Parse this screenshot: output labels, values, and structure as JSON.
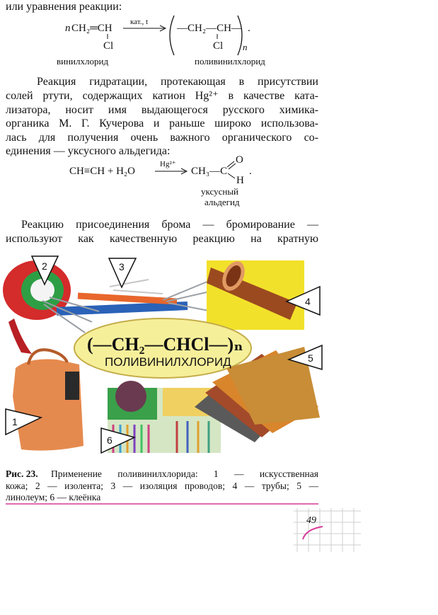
{
  "intro": "или уравнения реакции:",
  "reaction1": {
    "coefficient": "n",
    "reactant": "CH₂═CH",
    "reactant_sub": "Cl",
    "condition": "кат., t",
    "product": "—CH₂—CH—",
    "product_sub": "Cl",
    "index": "n",
    "end": ".",
    "reactant_name": "винилхлорид",
    "product_name": "поливинилхлорид"
  },
  "paragraph1": [
    "Реакция гидратации, протекающая в присутствии",
    "солей ртути, содержащих катион Hg²⁺ в качестве ката-",
    "лизатора, носит имя выдающегося русского химика-",
    "органика М. Г. Кучерова и раньше широко использова-",
    "лась для получения очень важного органического со-",
    "единения — уксусного альдегида:"
  ],
  "reaction2": {
    "left": "CH≡CH + H₂O",
    "condition": "Hg²⁺",
    "right": "CH₃—C",
    "top": "O",
    "bottom": "H",
    "end": ".",
    "product_name": [
      "уксусный",
      "альдегид"
    ]
  },
  "paragraph2": [
    "Реакцию присоединения брома — бромирование —",
    "используют как качественную реакцию на кратную"
  ],
  "figure": {
    "formula": "(—CH₂—CHCl—)ₙ",
    "name": "ПОЛИВИНИЛХЛОРИД",
    "callouts": [
      "1",
      "2",
      "3",
      "4",
      "5",
      "6"
    ]
  },
  "caption": {
    "label": "Рис. 23.",
    "lines": [
      "Применение поливинилхлорида: 1 — искусственная",
      "кожа; 2 — изолента; 3 — изоляция проводов; 4 — трубы; 5 —",
      "линолеум; 6 — клеёнка"
    ]
  },
  "page_number": "49"
}
